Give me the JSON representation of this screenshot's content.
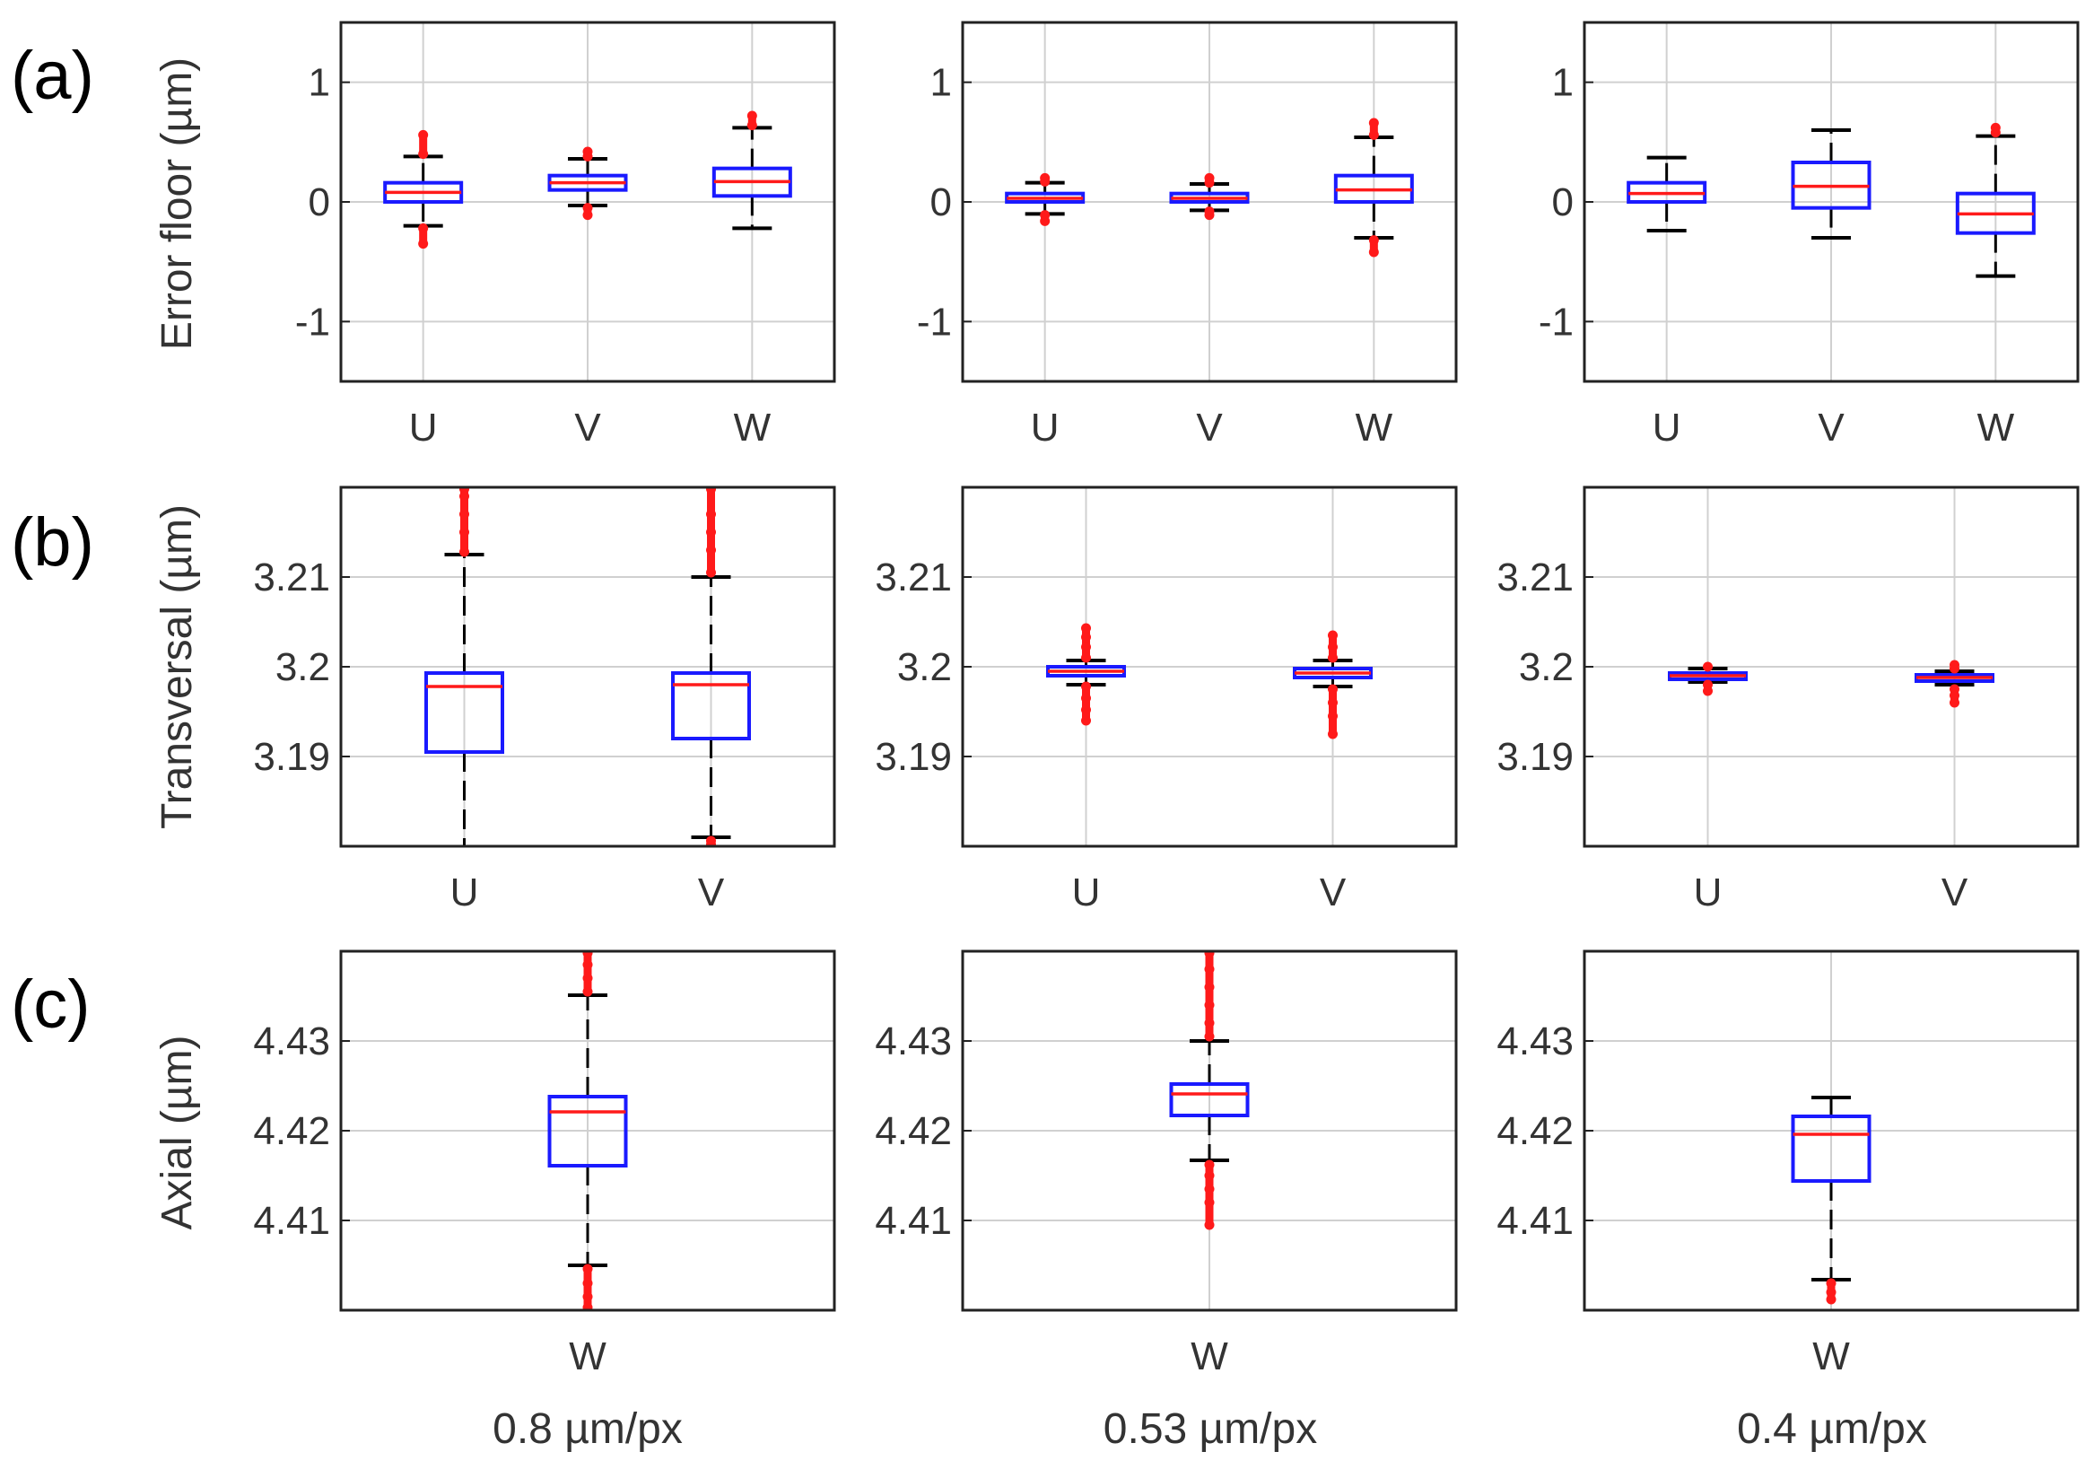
{
  "rows": [
    {
      "label": "(a)",
      "ylabel": "Error floor (µm)"
    },
    {
      "label": "(b)",
      "ylabel": "Transversal (µm)"
    },
    {
      "label": "(c)",
      "ylabel": "Axial (µm)"
    }
  ],
  "columns": [
    "0.8 µm/px",
    "0.53 µm/px",
    "0.4 µm/px"
  ],
  "colors": {
    "box": "#1a1aff",
    "median": "#ff1a1a",
    "outlier": "#ff1a1a",
    "whisker": "#000000",
    "grid": "#d0d0d0",
    "frame": "#222222"
  },
  "chart_data": [
    {
      "id": "a1",
      "row": 0,
      "col": 0,
      "type": "boxplot",
      "ylabel": "Error floor (µm)",
      "ylim": [
        -1.5,
        1.5
      ],
      "yticks": [
        1,
        0,
        -1
      ],
      "ytick_labels": [
        "1",
        "0",
        "-1"
      ],
      "categories": [
        "U",
        "V",
        "W"
      ],
      "boxes": [
        {
          "q1": 0.0,
          "median": 0.08,
          "q3": 0.16,
          "wlow": -0.2,
          "whigh": 0.38,
          "out_low": [
            -0.22,
            -0.35
          ],
          "out_high": [
            0.4,
            0.56
          ]
        },
        {
          "q1": 0.1,
          "median": 0.16,
          "q3": 0.22,
          "wlow": -0.03,
          "whigh": 0.36,
          "out_low": [
            -0.05,
            -0.11
          ],
          "out_high": [
            0.38,
            0.42
          ]
        },
        {
          "q1": 0.05,
          "median": 0.17,
          "q3": 0.28,
          "wlow": -0.22,
          "whigh": 0.62,
          "out_low": [],
          "out_high": [
            0.64,
            0.72
          ]
        }
      ]
    },
    {
      "id": "a2",
      "row": 0,
      "col": 1,
      "type": "boxplot",
      "ylabel": "",
      "ylim": [
        -1.5,
        1.5
      ],
      "yticks": [
        1,
        0,
        -1
      ],
      "ytick_labels": [
        "1",
        "0",
        "-1"
      ],
      "categories": [
        "U",
        "V",
        "W"
      ],
      "boxes": [
        {
          "q1": 0.0,
          "median": 0.03,
          "q3": 0.07,
          "wlow": -0.1,
          "whigh": 0.16,
          "out_low": [
            -0.11,
            -0.16
          ],
          "out_high": [
            0.17,
            0.2
          ]
        },
        {
          "q1": 0.0,
          "median": 0.03,
          "q3": 0.07,
          "wlow": -0.07,
          "whigh": 0.15,
          "out_low": [
            -0.08,
            -0.11
          ],
          "out_high": [
            0.16,
            0.2
          ]
        },
        {
          "q1": 0.0,
          "median": 0.1,
          "q3": 0.22,
          "wlow": -0.3,
          "whigh": 0.54,
          "out_low": [
            -0.32,
            -0.42
          ],
          "out_high": [
            0.56,
            0.66
          ]
        }
      ]
    },
    {
      "id": "a3",
      "row": 0,
      "col": 2,
      "type": "boxplot",
      "ylabel": "",
      "ylim": [
        -1.5,
        1.5
      ],
      "yticks": [
        1,
        0,
        -1
      ],
      "ytick_labels": [
        "1",
        "0",
        "-1"
      ],
      "categories": [
        "U",
        "V",
        "W"
      ],
      "boxes": [
        {
          "q1": 0.0,
          "median": 0.07,
          "q3": 0.16,
          "wlow": -0.24,
          "whigh": 0.37,
          "out_low": [],
          "out_high": []
        },
        {
          "q1": -0.05,
          "median": 0.13,
          "q3": 0.33,
          "wlow": -0.3,
          "whigh": 0.6,
          "out_low": [],
          "out_high": []
        },
        {
          "q1": -0.26,
          "median": -0.1,
          "q3": 0.07,
          "wlow": -0.62,
          "whigh": 0.55,
          "out_low": [],
          "out_high": [
            0.58,
            0.62
          ]
        }
      ]
    },
    {
      "id": "b1",
      "row": 1,
      "col": 0,
      "type": "boxplot",
      "ylabel": "Transversal (µm)",
      "ylim": [
        3.18,
        3.22
      ],
      "yticks": [
        3.21,
        3.2,
        3.19
      ],
      "ytick_labels": [
        "3.21",
        "3.2",
        "3.19"
      ],
      "categories": [
        "U",
        "V"
      ],
      "boxes": [
        {
          "q1": 3.1905,
          "median": 3.1978,
          "q3": 3.1993,
          "wlow": 3.179,
          "whigh": 3.2125,
          "out_low": [],
          "out_high": [
            3.2128,
            3.215,
            3.217,
            3.219,
            3.2198
          ]
        },
        {
          "q1": 3.192,
          "median": 3.198,
          "q3": 3.1993,
          "wlow": 3.181,
          "whigh": 3.21,
          "out_low": [
            3.1806,
            3.1802
          ],
          "out_high": [
            3.2105,
            3.213,
            3.215,
            3.217,
            3.2198
          ]
        }
      ]
    },
    {
      "id": "b2",
      "row": 1,
      "col": 1,
      "type": "boxplot",
      "ylabel": "",
      "ylim": [
        3.18,
        3.22
      ],
      "yticks": [
        3.21,
        3.2,
        3.19
      ],
      "ytick_labels": [
        "3.21",
        "3.2",
        "3.19"
      ],
      "categories": [
        "U",
        "V"
      ],
      "boxes": [
        {
          "q1": 3.199,
          "median": 3.1995,
          "q3": 3.2,
          "wlow": 3.198,
          "whigh": 3.2007,
          "out_low": [
            3.1978,
            3.1965,
            3.1952,
            3.194
          ],
          "out_high": [
            3.201,
            3.2022,
            3.2033,
            3.2043
          ]
        },
        {
          "q1": 3.1988,
          "median": 3.1993,
          "q3": 3.1998,
          "wlow": 3.1978,
          "whigh": 3.2007,
          "out_low": [
            3.1975,
            3.196,
            3.1945,
            3.1925
          ],
          "out_high": [
            3.201,
            3.2022,
            3.2035
          ]
        }
      ]
    },
    {
      "id": "b3",
      "row": 1,
      "col": 2,
      "type": "boxplot",
      "ylabel": "",
      "ylim": [
        3.18,
        3.22
      ],
      "yticks": [
        3.21,
        3.2,
        3.19
      ],
      "ytick_labels": [
        "3.21",
        "3.2",
        "3.19"
      ],
      "categories": [
        "U",
        "V"
      ],
      "boxes": [
        {
          "q1": 3.1986,
          "median": 3.199,
          "q3": 3.1993,
          "wlow": 3.1983,
          "whigh": 3.1998,
          "out_low": [
            3.198,
            3.1973
          ],
          "out_high": [
            3.2
          ]
        },
        {
          "q1": 3.1984,
          "median": 3.1988,
          "q3": 3.1991,
          "wlow": 3.198,
          "whigh": 3.1995,
          "out_low": [
            3.1975,
            3.1968,
            3.196
          ],
          "out_high": [
            3.1998,
            3.2002
          ]
        }
      ]
    },
    {
      "id": "c1",
      "row": 2,
      "col": 0,
      "type": "boxplot",
      "ylabel": "Axial (µm)",
      "ylim": [
        4.4,
        4.44
      ],
      "yticks": [
        4.43,
        4.42,
        4.41
      ],
      "ytick_labels": [
        "4.43",
        "4.42",
        "4.41"
      ],
      "categories": [
        "W"
      ],
      "boxes": [
        {
          "q1": 4.4161,
          "median": 4.4221,
          "q3": 4.4238,
          "wlow": 4.405,
          "whigh": 4.4351,
          "out_low": [
            4.4046,
            4.403,
            4.4015,
            4.4003
          ],
          "out_high": [
            4.4355,
            4.437,
            4.4385,
            4.4398
          ]
        }
      ]
    },
    {
      "id": "c2",
      "row": 2,
      "col": 1,
      "type": "boxplot",
      "ylabel": "",
      "ylim": [
        4.4,
        4.44
      ],
      "yticks": [
        4.43,
        4.42,
        4.41
      ],
      "ytick_labels": [
        "4.43",
        "4.42",
        "4.41"
      ],
      "categories": [
        "W"
      ],
      "boxes": [
        {
          "q1": 4.4217,
          "median": 4.4241,
          "q3": 4.4252,
          "wlow": 4.4167,
          "whigh": 4.43,
          "out_low": [
            4.4162,
            4.415,
            4.4135,
            4.412,
            4.4095
          ],
          "out_high": [
            4.4305,
            4.432,
            4.434,
            4.436,
            4.438,
            4.4398
          ]
        }
      ]
    },
    {
      "id": "c3",
      "row": 2,
      "col": 2,
      "type": "boxplot",
      "ylabel": "",
      "ylim": [
        4.4,
        4.44
      ],
      "yticks": [
        4.43,
        4.42,
        4.41
      ],
      "ytick_labels": [
        "4.43",
        "4.42",
        "4.41"
      ],
      "categories": [
        "W"
      ],
      "boxes": [
        {
          "q1": 4.4144,
          "median": 4.4196,
          "q3": 4.4216,
          "wlow": 4.4034,
          "whigh": 4.4237,
          "out_low": [
            4.403,
            4.402,
            4.4012
          ],
          "out_high": []
        }
      ]
    }
  ]
}
